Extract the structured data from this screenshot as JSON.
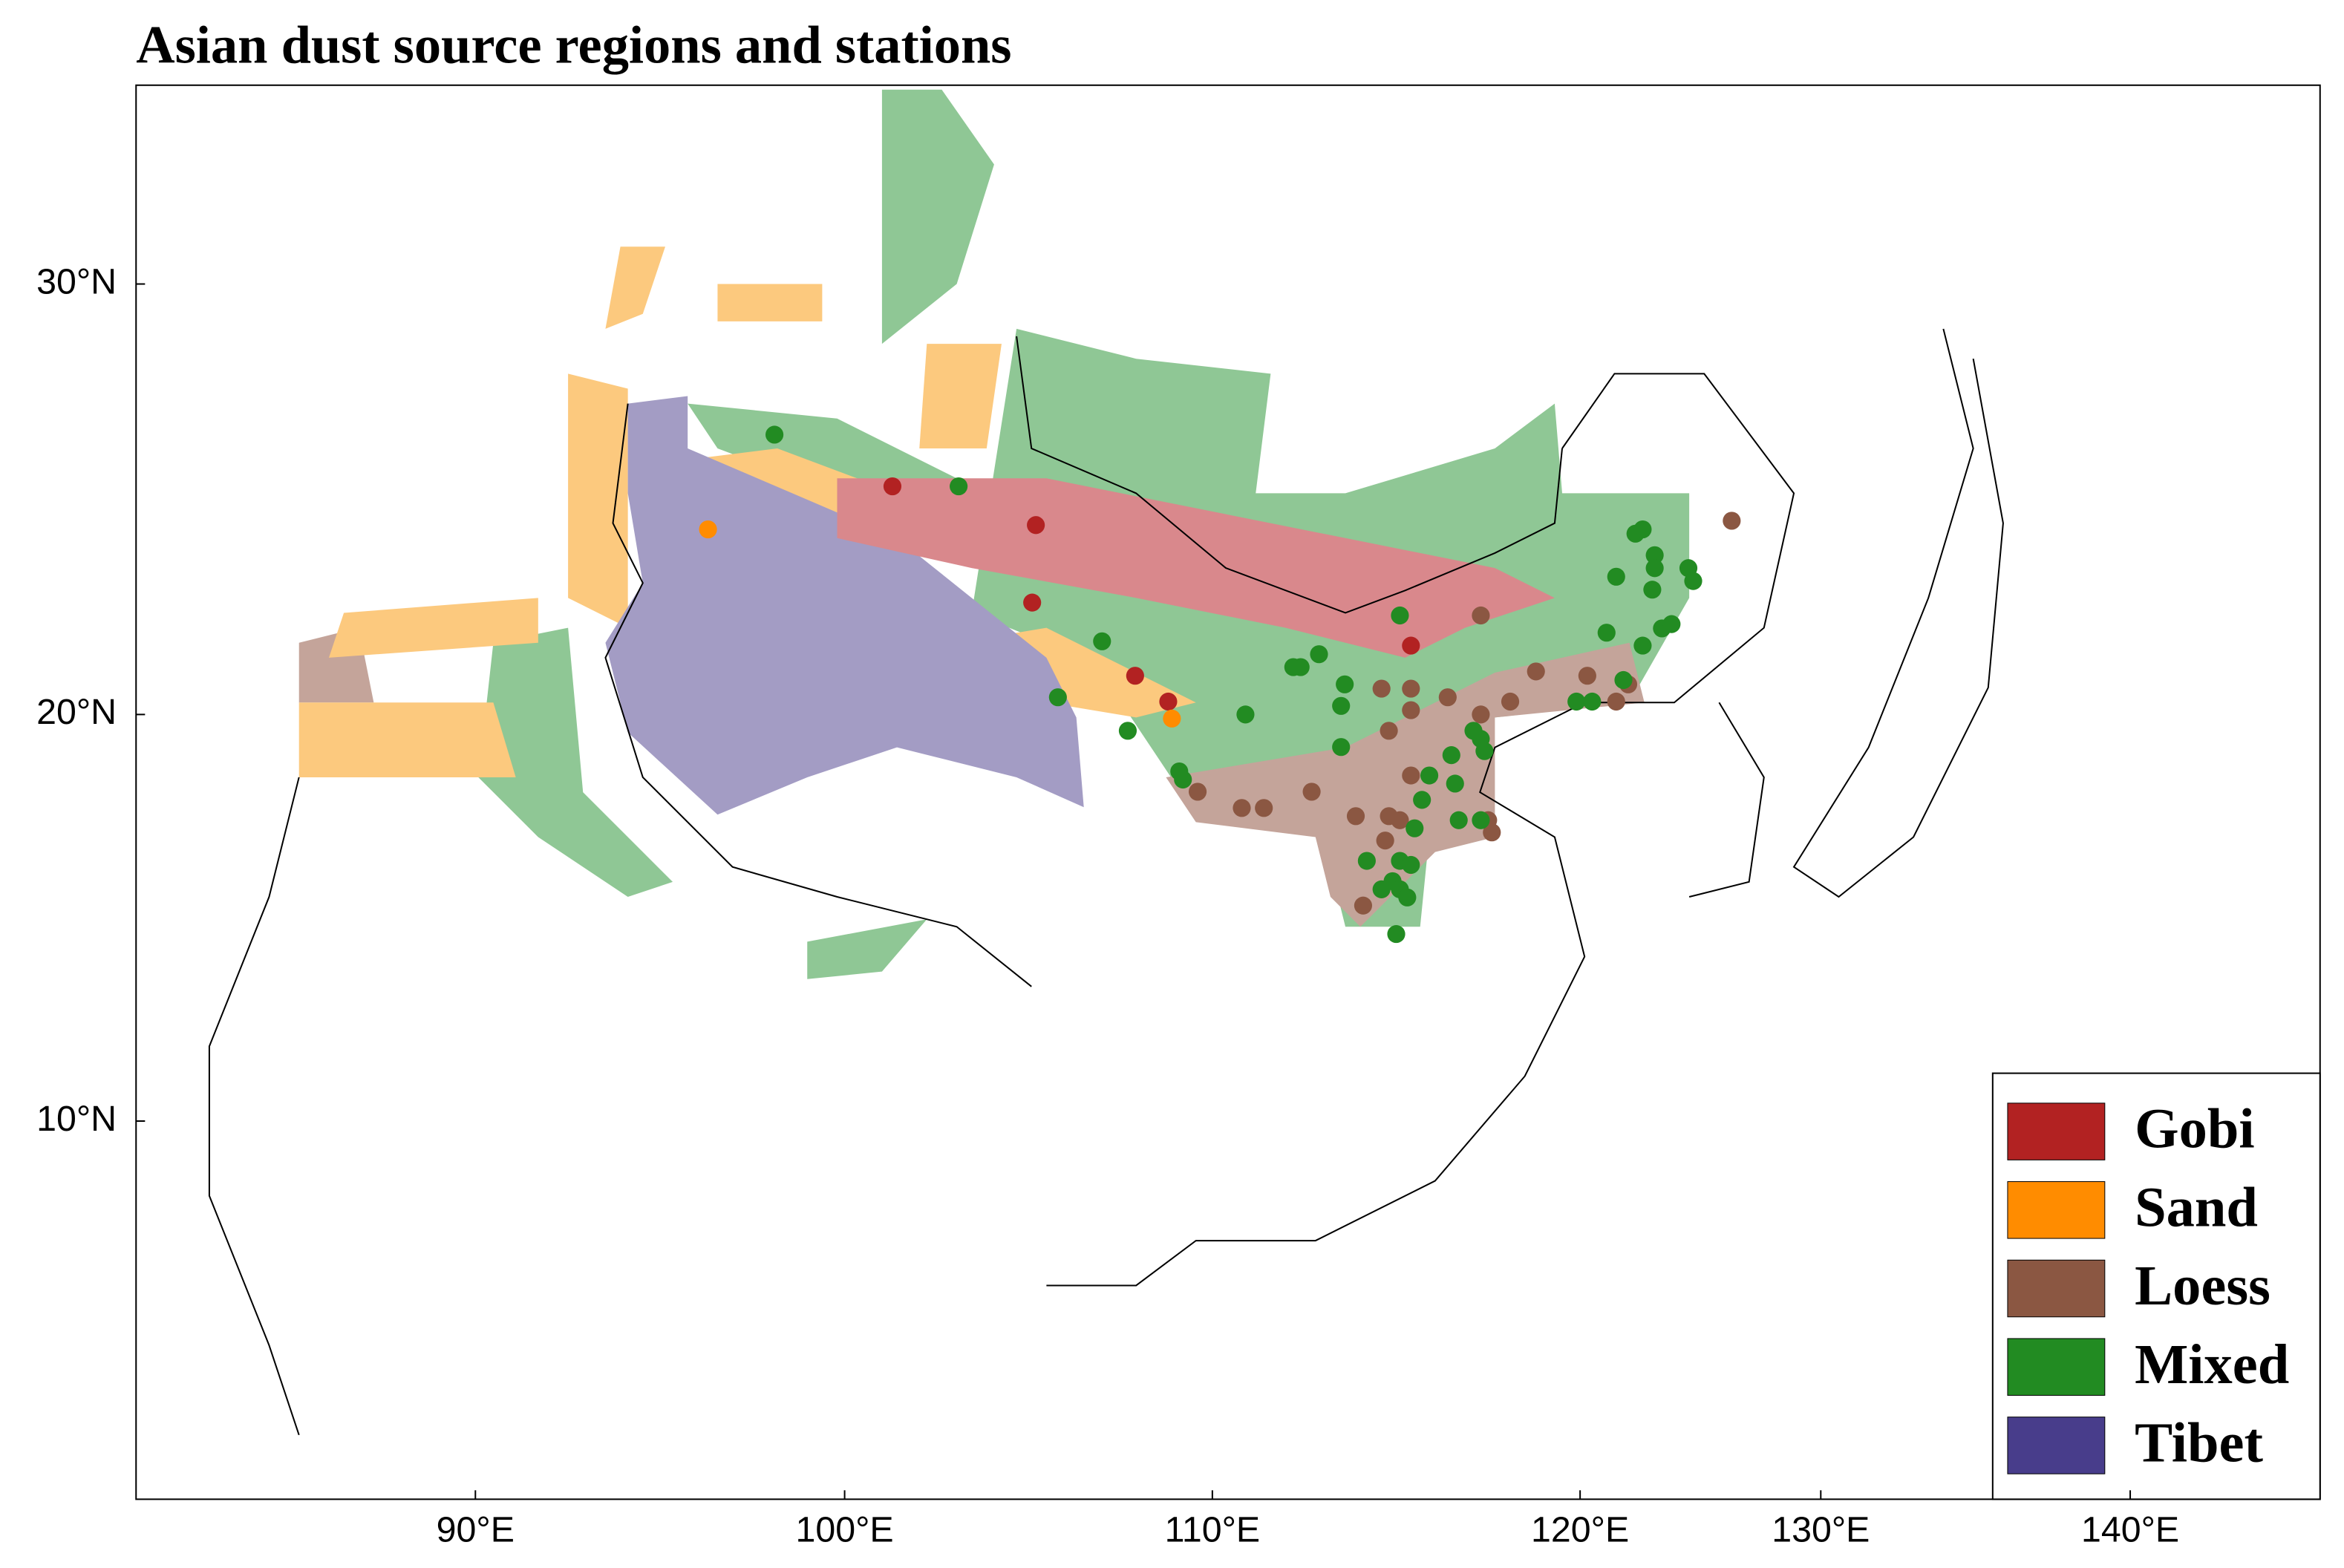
{
  "chart_data": {
    "type": "scatter",
    "title": "Asian dust source regions and stations",
    "xlim": [
      80.8,
      146.1
    ],
    "ylim": [
      0.7,
      34.6
    ],
    "xticks": [
      {
        "value": 90,
        "label": "90°E"
      },
      {
        "value": 100,
        "label": "100°E"
      },
      {
        "value": 110,
        "label": "110°E"
      },
      {
        "value": 120,
        "label": "120°E"
      },
      {
        "value": 130,
        "label": "130°E"
      },
      {
        "value": 140,
        "label": "140°E"
      }
    ],
    "yticks": [
      {
        "value": 10,
        "label": "10°N"
      },
      {
        "value": 20,
        "label": "20°N"
      },
      {
        "value": 30,
        "label": "30°N"
      }
    ],
    "legend": "lower right",
    "series": [
      {
        "name": "Gobi",
        "color": "#b22222",
        "x": [
          101.3,
          105.2,
          105.1,
          107.9,
          108.8,
          115.4
        ],
        "y": [
          25.3,
          24.4,
          22.6,
          20.9,
          20.3,
          21.6
        ]
      },
      {
        "name": "Sand",
        "color": "#ff8c00",
        "x": [
          96.3,
          108.9
        ],
        "y": [
          24.3,
          19.9
        ]
      },
      {
        "name": "Loess",
        "color": "#8b5742",
        "x": [
          126.3,
          117.3,
          114.6,
          115.4,
          116.4,
          115.4,
          114.8,
          118.1,
          118.8,
          120.3,
          122.0,
          121.5,
          109.6,
          110.8,
          111.4,
          112.7,
          113.9,
          114.8,
          115.4,
          117.3,
          117.5,
          117.6,
          114.1,
          114.7,
          115.1
        ],
        "y": [
          24.5,
          22.3,
          20.6,
          20.6,
          20.4,
          20.1,
          19.6,
          20.3,
          21.0,
          20.9,
          20.7,
          20.3,
          18.1,
          17.7,
          17.7,
          18.1,
          17.5,
          17.5,
          18.5,
          20.0,
          17.4,
          17.1,
          15.3,
          16.9,
          17.4
        ]
      },
      {
        "name": "Mixed",
        "color": "#228b22",
        "x": [
          98.1,
          103.1,
          107.0,
          105.8,
          107.7,
          109.1,
          109.2,
          110.9,
          112.2,
          112.9,
          113.6,
          113.5,
          115.1,
          122.3,
          122.6,
          123.1,
          123.1,
          123.0,
          121.5,
          124.5,
          124.7,
          123.4,
          123.8,
          122.6,
          121.8,
          121.1,
          119.9,
          120.5,
          117.1,
          117.3,
          117.4,
          115.9,
          116.5,
          116.6,
          115.7,
          116.7,
          117.3,
          114.2,
          114.6,
          114.9,
          115.1,
          115.5,
          115.4,
          115.1,
          115.3,
          115.0,
          113.5,
          112.4
        ],
        "y": [
          26.5,
          25.3,
          21.7,
          20.4,
          19.6,
          18.6,
          18.4,
          20.0,
          21.1,
          21.4,
          20.7,
          20.2,
          22.3,
          24.2,
          24.3,
          23.7,
          23.4,
          22.9,
          23.2,
          23.4,
          23.1,
          22.0,
          22.1,
          21.6,
          20.8,
          21.9,
          20.3,
          20.3,
          19.6,
          19.4,
          19.1,
          18.5,
          19.0,
          18.3,
          17.9,
          17.4,
          17.4,
          16.4,
          15.7,
          15.9,
          16.4,
          17.2,
          16.3,
          15.7,
          15.5,
          14.6,
          19.2,
          21.1
        ]
      },
      {
        "name": "Tibet",
        "color": "#483d8b",
        "x": [],
        "y": []
      }
    ]
  }
}
